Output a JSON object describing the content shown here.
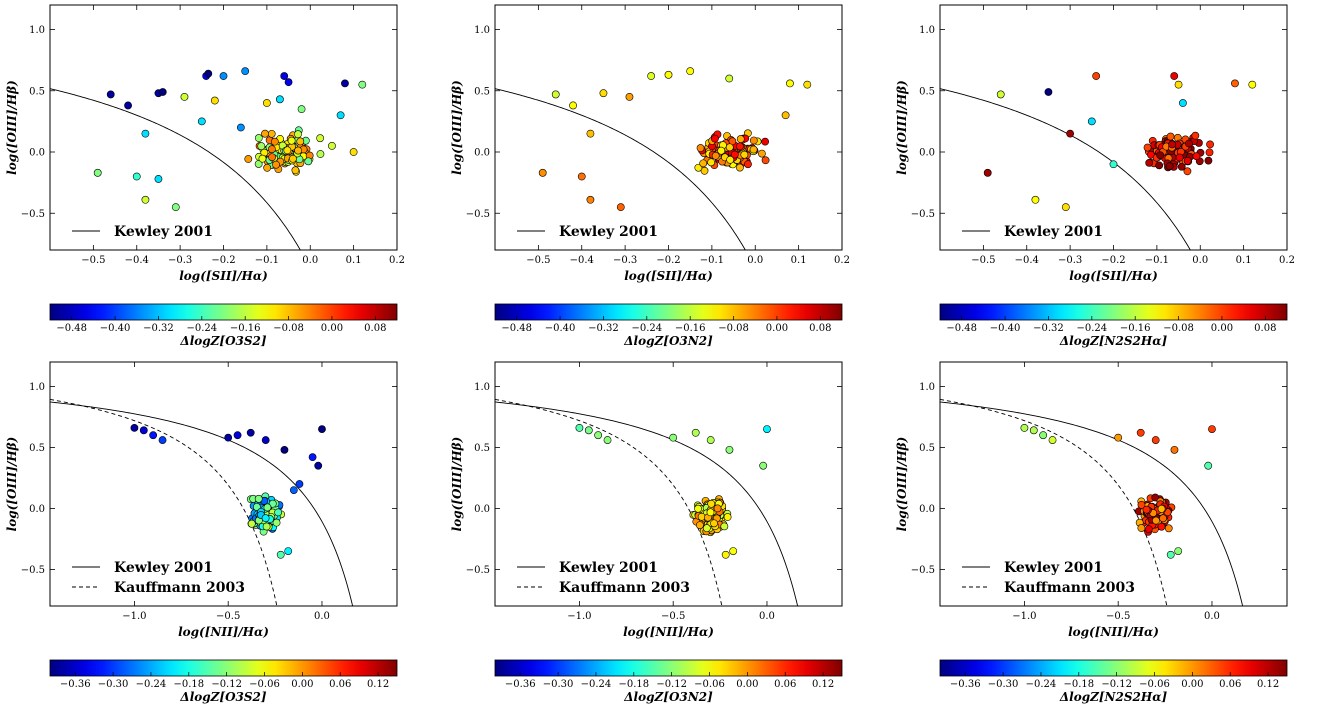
{
  "figure": {
    "panel_columns": 3,
    "panel_rows": 2
  },
  "chart_data": [
    {
      "type": "scatter",
      "xlabel": "log([SII]/Hα)",
      "ylabel": "log([OIII]/Hβ)",
      "xlim": [
        -0.6,
        0.2
      ],
      "ylim": [
        -0.8,
        1.2
      ],
      "xticks": [
        -0.5,
        -0.4,
        -0.3,
        -0.2,
        -0.1,
        0.0,
        0.1,
        0.2
      ],
      "yticks": [
        -0.5,
        0.0,
        0.5,
        1.0
      ],
      "grid": false,
      "legend_placement": "lower-left",
      "legend": [
        {
          "style": "solid",
          "label": "Kewley 2001"
        }
      ],
      "colorbar": {
        "label": "ΔlogZ[O3S2]",
        "colormap": "jet",
        "range": [
          -0.52,
          0.12
        ],
        "ticks": [
          -0.48,
          -0.4,
          -0.32,
          -0.24,
          -0.16,
          -0.08,
          0.0,
          0.08
        ]
      },
      "points": [
        [
          -0.46,
          0.47,
          -0.5
        ],
        [
          -0.42,
          0.38,
          -0.5
        ],
        [
          -0.35,
          0.48,
          -0.5
        ],
        [
          -0.34,
          0.49,
          -0.52
        ],
        [
          -0.24,
          0.62,
          -0.45
        ],
        [
          -0.235,
          0.64,
          -0.52
        ],
        [
          -0.2,
          0.62,
          -0.35
        ],
        [
          -0.15,
          0.66,
          -0.35
        ],
        [
          -0.06,
          0.62,
          -0.45
        ],
        [
          -0.05,
          0.57,
          -0.45
        ],
        [
          0.08,
          0.56,
          -0.5
        ],
        [
          -0.38,
          0.15,
          -0.3
        ],
        [
          -0.25,
          0.25,
          -0.3
        ],
        [
          0.07,
          0.3,
          -0.3
        ],
        [
          -0.49,
          -0.17,
          -0.2
        ],
        [
          -0.4,
          -0.2,
          -0.25
        ],
        [
          -0.35,
          -0.22,
          -0.3
        ],
        [
          -0.31,
          -0.45,
          -0.2
        ],
        [
          -0.38,
          -0.39,
          -0.15
        ],
        [
          0.12,
          0.55,
          -0.2
        ],
        [
          -0.29,
          0.45,
          -0.15
        ],
        [
          -0.22,
          0.42,
          -0.1
        ],
        [
          -0.1,
          0.4,
          -0.1
        ],
        [
          -0.07,
          0.43,
          -0.3
        ],
        [
          -0.02,
          0.35,
          -0.2
        ],
        [
          -0.16,
          0.2,
          -0.35
        ],
        [
          -0.03,
          0.1,
          -0.2
        ],
        [
          0.05,
          0.05,
          -0.15
        ],
        [
          0.1,
          0.0,
          -0.1
        ]
      ],
      "cloud": {
        "x_center": -0.06,
        "y_center": 0.0,
        "x_spread": 0.08,
        "y_spread": 0.16,
        "count": 120,
        "value_range": [
          -0.22,
          -0.02
        ],
        "x_range": [
          -0.22,
          0.07
        ],
        "y_range": [
          -0.32,
          0.35
        ]
      }
    },
    {
      "type": "scatter",
      "xlabel": "log([SII]/Hα)",
      "ylabel": "log([OIII]/Hβ)",
      "xlim": [
        -0.6,
        0.2
      ],
      "ylim": [
        -0.8,
        1.2
      ],
      "xticks": [
        -0.5,
        -0.4,
        -0.3,
        -0.2,
        -0.1,
        0.0,
        0.1,
        0.2
      ],
      "yticks": [
        -0.5,
        0.0,
        0.5,
        1.0
      ],
      "grid": false,
      "legend_placement": "lower-left",
      "legend": [
        {
          "style": "solid",
          "label": "Kewley 2001"
        }
      ],
      "colorbar": {
        "label": "ΔlogZ[O3N2]",
        "colormap": "jet",
        "range": [
          -0.52,
          0.12
        ],
        "ticks": [
          -0.48,
          -0.4,
          -0.32,
          -0.24,
          -0.16,
          -0.08,
          0.0,
          0.08
        ]
      },
      "points": [
        [
          -0.46,
          0.47,
          -0.15
        ],
        [
          -0.42,
          0.38,
          -0.12
        ],
        [
          -0.35,
          0.48,
          -0.1
        ],
        [
          -0.24,
          0.62,
          -0.14
        ],
        [
          -0.2,
          0.63,
          -0.12
        ],
        [
          -0.15,
          0.66,
          -0.12
        ],
        [
          -0.06,
          0.6,
          -0.15
        ],
        [
          0.08,
          0.56,
          -0.12
        ],
        [
          0.12,
          0.55,
          -0.1
        ],
        [
          -0.49,
          -0.17,
          -0.05
        ],
        [
          -0.4,
          -0.2,
          -0.03
        ],
        [
          -0.31,
          -0.45,
          -0.02
        ],
        [
          -0.38,
          -0.39,
          -0.04
        ],
        [
          -0.29,
          0.45,
          -0.06
        ],
        [
          -0.38,
          0.15,
          -0.08
        ],
        [
          0.07,
          0.3,
          -0.08
        ]
      ],
      "cloud": {
        "x_center": -0.06,
        "y_center": 0.0,
        "x_spread": 0.08,
        "y_spread": 0.16,
        "count": 120,
        "value_range": [
          -0.12,
          0.06
        ],
        "x_range": [
          -0.22,
          0.07
        ],
        "y_range": [
          -0.32,
          0.35
        ]
      }
    },
    {
      "type": "scatter",
      "xlabel": "log([SII]/Hα)",
      "ylabel": "log([OIII]/Hβ)",
      "xlim": [
        -0.6,
        0.2
      ],
      "ylim": [
        -0.8,
        1.2
      ],
      "xticks": [
        -0.5,
        -0.4,
        -0.3,
        -0.2,
        -0.1,
        0.0,
        0.1,
        0.2
      ],
      "yticks": [
        -0.5,
        0.0,
        0.5,
        1.0
      ],
      "grid": false,
      "legend_placement": "lower-left",
      "legend": [
        {
          "style": "solid",
          "label": "Kewley 2001"
        }
      ],
      "colorbar": {
        "label": "ΔlogZ[N2S2Hα]",
        "colormap": "jet",
        "range": [
          -0.52,
          0.12
        ],
        "ticks": [
          -0.48,
          -0.4,
          -0.32,
          -0.24,
          -0.16,
          -0.08,
          0.0,
          0.08
        ]
      },
      "points": [
        [
          -0.46,
          0.47,
          -0.15
        ],
        [
          -0.35,
          0.49,
          -0.52
        ],
        [
          -0.24,
          0.62,
          0.0
        ],
        [
          -0.06,
          0.62,
          0.05
        ],
        [
          -0.05,
          0.55,
          -0.1
        ],
        [
          -0.04,
          0.4,
          -0.3
        ],
        [
          0.08,
          0.56,
          -0.02
        ],
        [
          0.12,
          0.55,
          -0.12
        ],
        [
          -0.49,
          -0.17,
          0.1
        ],
        [
          -0.31,
          -0.45,
          -0.1
        ],
        [
          -0.38,
          -0.39,
          -0.12
        ],
        [
          -0.2,
          -0.1,
          -0.25
        ],
        [
          -0.25,
          0.25,
          -0.3
        ],
        [
          -0.3,
          0.15,
          0.1
        ]
      ],
      "cloud": {
        "x_center": -0.06,
        "y_center": 0.0,
        "x_spread": 0.08,
        "y_spread": 0.16,
        "count": 120,
        "value_range": [
          -0.04,
          0.12
        ],
        "x_range": [
          -0.22,
          0.07
        ],
        "y_range": [
          -0.32,
          0.35
        ]
      }
    },
    {
      "type": "scatter",
      "xlabel": "log([NII]/Hα)",
      "ylabel": "log([OIII]/Hβ)",
      "xlim": [
        -1.45,
        0.4
      ],
      "ylim": [
        -0.8,
        1.2
      ],
      "xticks": [
        -1.0,
        -0.5,
        0.0
      ],
      "yticks": [
        -0.5,
        0.0,
        0.5,
        1.0
      ],
      "grid": false,
      "legend_placement": "lower-left",
      "legend": [
        {
          "style": "solid",
          "label": "Kewley 2001"
        },
        {
          "style": "dashed",
          "label": "Kauffmann 2003"
        }
      ],
      "colorbar": {
        "label": "ΔlogZ[O3S2]",
        "colormap": "jet",
        "range": [
          -0.4,
          0.15
        ],
        "ticks": [
          -0.36,
          -0.3,
          -0.24,
          -0.18,
          -0.12,
          -0.06,
          0.0,
          0.06,
          0.12
        ]
      },
      "points": [
        [
          -1.0,
          0.66,
          -0.38
        ],
        [
          -0.95,
          0.64,
          -0.35
        ],
        [
          -0.9,
          0.6,
          -0.32
        ],
        [
          -0.85,
          0.56,
          -0.3
        ],
        [
          -0.5,
          0.58,
          -0.38
        ],
        [
          -0.45,
          0.6,
          -0.35
        ],
        [
          -0.38,
          0.62,
          -0.38
        ],
        [
          -0.3,
          0.56,
          -0.36
        ],
        [
          -0.2,
          0.48,
          -0.4
        ],
        [
          0.0,
          0.65,
          -0.4
        ],
        [
          -0.05,
          0.42,
          -0.32
        ],
        [
          -0.02,
          0.35,
          -0.38
        ],
        [
          -0.12,
          0.2,
          -0.3
        ],
        [
          -0.15,
          0.15,
          -0.28
        ],
        [
          -0.18,
          -0.35,
          -0.2
        ],
        [
          -0.22,
          -0.38,
          -0.15
        ]
      ],
      "cloud": {
        "x_center": -0.3,
        "y_center": -0.05,
        "x_spread": 0.09,
        "y_spread": 0.15,
        "count": 140,
        "value_range": [
          -0.28,
          -0.06
        ],
        "x_range": [
          -0.55,
          -0.1
        ],
        "y_range": [
          -0.42,
          0.45
        ]
      }
    },
    {
      "type": "scatter",
      "xlabel": "log([NII]/Hα)",
      "ylabel": "log([OIII]/Hβ)",
      "xlim": [
        -1.45,
        0.4
      ],
      "ylim": [
        -0.8,
        1.2
      ],
      "xticks": [
        -1.0,
        -0.5,
        0.0
      ],
      "yticks": [
        -0.5,
        0.0,
        0.5,
        1.0
      ],
      "grid": false,
      "legend_placement": "lower-left",
      "legend": [
        {
          "style": "solid",
          "label": "Kewley 2001"
        },
        {
          "style": "dashed",
          "label": "Kauffmann 2003"
        }
      ],
      "colorbar": {
        "label": "ΔlogZ[O3N2]",
        "colormap": "jet",
        "range": [
          -0.4,
          0.15
        ],
        "ticks": [
          -0.36,
          -0.3,
          -0.24,
          -0.18,
          -0.12,
          -0.06,
          0.0,
          0.06,
          0.12
        ]
      },
      "points": [
        [
          -1.0,
          0.66,
          -0.15
        ],
        [
          -0.95,
          0.64,
          -0.13
        ],
        [
          -0.9,
          0.6,
          -0.12
        ],
        [
          -0.85,
          0.56,
          -0.12
        ],
        [
          -0.5,
          0.58,
          -0.12
        ],
        [
          -0.38,
          0.62,
          -0.1
        ],
        [
          -0.3,
          0.56,
          -0.1
        ],
        [
          -0.2,
          0.48,
          -0.12
        ],
        [
          0.0,
          0.65,
          -0.2
        ],
        [
          -0.02,
          0.35,
          -0.12
        ],
        [
          -0.18,
          -0.35,
          -0.06
        ],
        [
          -0.22,
          -0.38,
          -0.05
        ]
      ],
      "cloud": {
        "x_center": -0.3,
        "y_center": -0.05,
        "x_spread": 0.09,
        "y_spread": 0.15,
        "count": 140,
        "value_range": [
          -0.1,
          0.02
        ],
        "x_range": [
          -0.55,
          -0.1
        ],
        "y_range": [
          -0.42,
          0.45
        ]
      }
    },
    {
      "type": "scatter",
      "xlabel": "log([NII]/Hα)",
      "ylabel": "log([OIII]/Hβ)",
      "xlim": [
        -1.45,
        0.4
      ],
      "ylim": [
        -0.8,
        1.2
      ],
      "xticks": [
        -1.0,
        -0.5,
        0.0
      ],
      "yticks": [
        -0.5,
        0.0,
        0.5,
        1.0
      ],
      "grid": false,
      "legend_placement": "lower-left",
      "legend": [
        {
          "style": "solid",
          "label": "Kewley 2001"
        },
        {
          "style": "dashed",
          "label": "Kauffmann 2003"
        }
      ],
      "colorbar": {
        "label": "ΔlogZ[N2S2Hα]",
        "colormap": "jet",
        "range": [
          -0.4,
          0.15
        ],
        "ticks": [
          -0.36,
          -0.3,
          -0.24,
          -0.18,
          -0.12,
          -0.06,
          0.0,
          0.06,
          0.12
        ]
      },
      "points": [
        [
          -1.0,
          0.66,
          -0.1
        ],
        [
          -0.95,
          0.64,
          -0.1
        ],
        [
          -0.9,
          0.6,
          -0.12
        ],
        [
          -0.85,
          0.56,
          -0.08
        ],
        [
          -0.5,
          0.58,
          0.0
        ],
        [
          -0.38,
          0.62,
          0.05
        ],
        [
          -0.3,
          0.56,
          0.05
        ],
        [
          -0.2,
          0.48,
          0.02
        ],
        [
          0.0,
          0.65,
          0.05
        ],
        [
          -0.02,
          0.35,
          -0.15
        ],
        [
          -0.18,
          -0.35,
          -0.12
        ],
        [
          -0.22,
          -0.38,
          -0.15
        ]
      ],
      "cloud": {
        "x_center": -0.3,
        "y_center": -0.05,
        "x_spread": 0.09,
        "y_spread": 0.15,
        "count": 140,
        "value_range": [
          -0.02,
          0.14
        ],
        "x_range": [
          -0.55,
          -0.1
        ],
        "y_range": [
          -0.42,
          0.45
        ]
      }
    }
  ]
}
